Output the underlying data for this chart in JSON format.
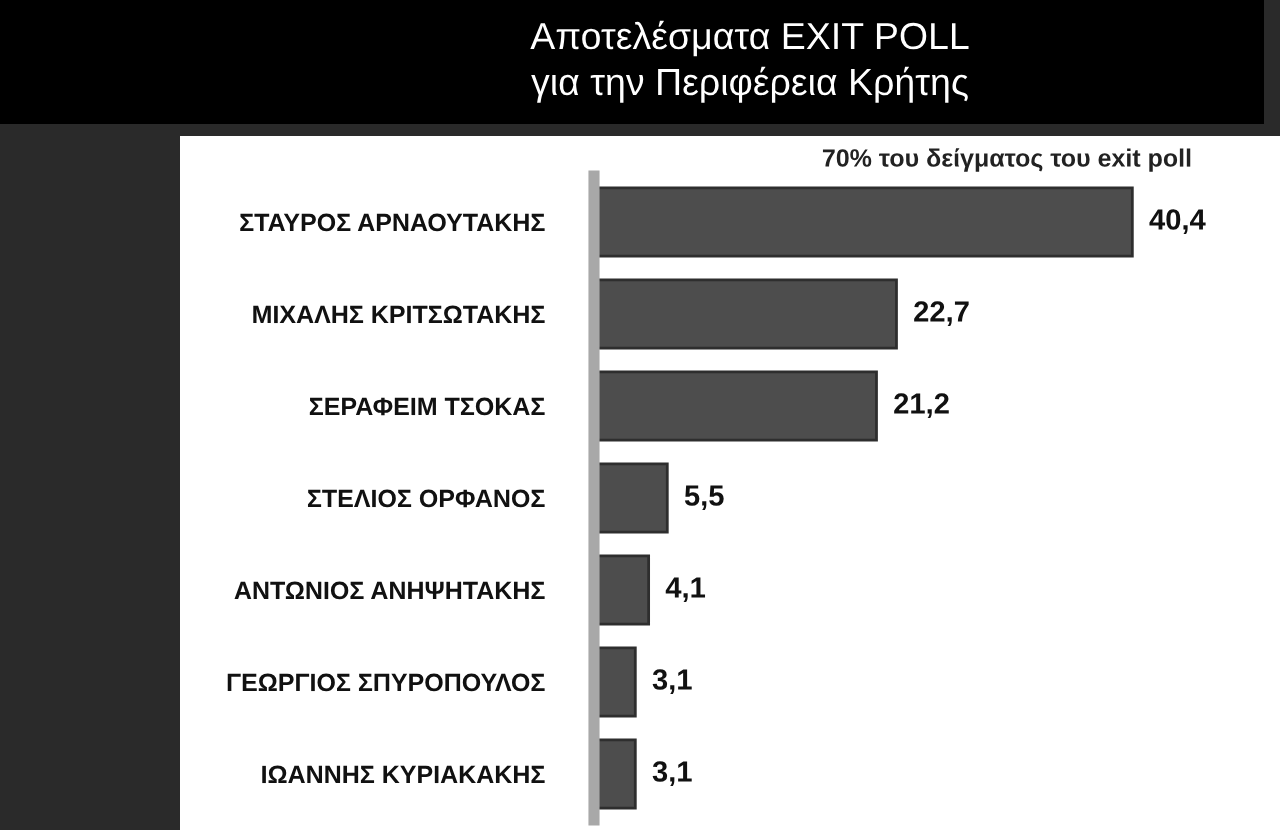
{
  "chart_data": {
    "type": "bar",
    "orientation": "horizontal",
    "title": "Αποτελέσματα EXIT POLL\nγια την Περιφέρεια Κρήτης",
    "subtitle": "70% του δείγματος του exit poll",
    "categories": [
      "ΣΤΑΥΡΟΣ ΑΡΝΑΟΥΤΑΚΗΣ",
      "ΜΙΧΑΛΗΣ ΚΡΙΤΣΩΤΑΚΗΣ",
      "ΣΕΡΑΦΕΙΜ ΤΣΟΚΑΣ",
      "ΣΤΕΛΙΟΣ ΟΡΦΑΝΟΣ",
      "ΑΝΤΩΝΙΟΣ ΑΝΗΨΗΤΑΚΗΣ",
      "ΓΕΩΡΓΙΟΣ ΣΠΥΡΟΠΟΥΛΟΣ",
      "ΙΩΑΝΝΗΣ ΚΥΡΙΑΚΑΚΗΣ"
    ],
    "values": [
      40.4,
      22.7,
      21.2,
      5.5,
      4.1,
      3.1,
      3.1
    ],
    "value_labels": [
      "40,4",
      "22,7",
      "21,2",
      "5,5",
      "4,1",
      "3,1",
      "3,1"
    ],
    "color": "#4d4d4d",
    "tick_labels": "y",
    "grid": false
  }
}
